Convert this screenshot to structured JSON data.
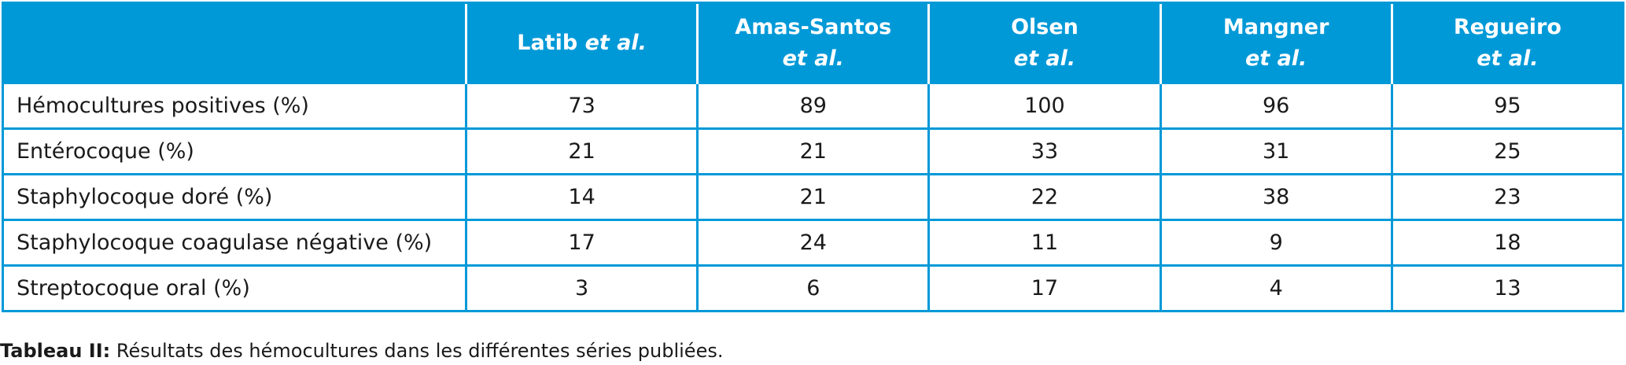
{
  "table": {
    "columns": [
      {
        "name": "Latib",
        "italic": "et al."
      },
      {
        "name": "Amas-Santos",
        "italic": "et al."
      },
      {
        "name": "Olsen",
        "italic": "et al."
      },
      {
        "name": "Mangner",
        "italic": "et al."
      },
      {
        "name": "Regueiro",
        "italic": "et al."
      }
    ],
    "rows": [
      [
        "Hémocultures positives (%)",
        73,
        89,
        100,
        96,
        95
      ],
      [
        "Entérocoque (%)",
        21,
        21,
        33,
        31,
        25
      ],
      [
        "Staphylocoque doré (%)",
        14,
        21,
        22,
        38,
        23
      ],
      [
        "Staphylocoque coagulase négative (%)",
        17,
        24,
        11,
        9,
        18
      ],
      [
        "Streptocoque oral (%)",
        3,
        6,
        17,
        4,
        13
      ]
    ]
  },
  "caption": {
    "label": "Tableau II:",
    "text": "Résultats des hémocultures dans les différentes séries publiées."
  }
}
